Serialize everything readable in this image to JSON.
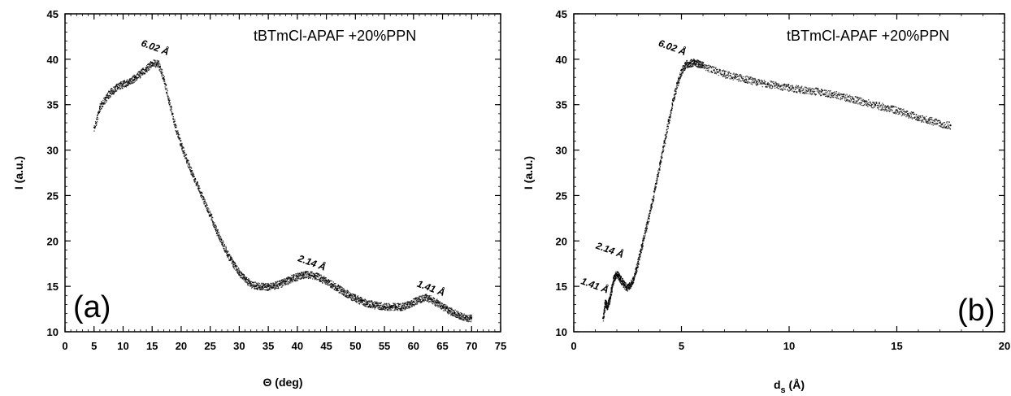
{
  "chart_data": [
    {
      "type": "scatter",
      "title": "",
      "legend_text": "tBTmCl-APAF +20%PPN",
      "panel_tag": "(a)",
      "xlabel": "Θ (deg)",
      "ylabel": "I (a.u.)",
      "xlim": [
        0,
        75
      ],
      "ylim": [
        10,
        45
      ],
      "xticks": [
        0,
        5,
        10,
        15,
        20,
        25,
        30,
        35,
        40,
        45,
        50,
        55,
        60,
        65,
        70,
        75
      ],
      "yticks": [
        10,
        15,
        20,
        25,
        30,
        35,
        40,
        45
      ],
      "marker_color": "#000000",
      "series": [
        {
          "x": [
            5,
            6,
            7,
            8,
            9,
            10,
            11,
            12,
            13,
            14,
            15,
            16,
            17,
            18,
            19,
            20,
            21,
            22,
            23,
            24,
            25,
            26,
            27,
            28,
            29,
            30,
            31,
            32,
            33,
            34,
            35,
            36,
            37,
            38,
            39,
            40,
            41,
            42,
            43,
            44,
            45,
            46,
            47,
            48,
            49,
            50,
            51,
            52,
            53,
            54,
            55,
            56,
            57,
            58,
            59,
            60,
            61,
            62,
            63,
            64,
            65,
            66,
            67,
            68,
            69,
            70
          ],
          "y": [
            32.5,
            34.8,
            35.8,
            36.5,
            37.0,
            37.3,
            37.5,
            38.0,
            38.5,
            39.0,
            39.6,
            39.5,
            37.8,
            35.0,
            32.5,
            30.5,
            28.8,
            27.2,
            25.8,
            24.3,
            22.8,
            21.2,
            19.8,
            18.5,
            17.4,
            16.5,
            15.8,
            15.3,
            15.1,
            15.0,
            15.0,
            15.1,
            15.3,
            15.6,
            15.9,
            16.1,
            16.3,
            16.3,
            16.2,
            15.9,
            15.6,
            15.2,
            14.8,
            14.4,
            14.0,
            13.7,
            13.4,
            13.2,
            13.0,
            12.9,
            12.8,
            12.8,
            12.8,
            12.8,
            13.0,
            13.3,
            13.6,
            13.8,
            13.6,
            13.2,
            12.8,
            12.4,
            12.1,
            11.8,
            11.6,
            11.5
          ]
        }
      ],
      "annotations": [
        {
          "text": "6.02 Å",
          "x": 13.0,
          "y": 41.5
        },
        {
          "text": "2.14 Å",
          "x": 40.0,
          "y": 17.8
        },
        {
          "text": "1.41 Å",
          "x": 60.5,
          "y": 15.0
        }
      ]
    },
    {
      "type": "scatter",
      "title": "",
      "legend_text": "tBTmCl-APAF +20%PPN",
      "panel_tag": "(b)",
      "xlabel": "d",
      "xlabel_sub": "s",
      "xlabel_unit": " (Å)",
      "ylabel": "I (a.u.)",
      "xlim": [
        0,
        20
      ],
      "ylim": [
        10,
        45
      ],
      "xticks": [
        0,
        5,
        10,
        15,
        20
      ],
      "yticks": [
        10,
        15,
        20,
        25,
        30,
        35,
        40,
        45
      ],
      "marker_color": "#000000",
      "series": [
        {
          "x": [
            1.35,
            1.45,
            1.55,
            1.65,
            1.75,
            1.85,
            1.95,
            2.05,
            2.15,
            2.3,
            2.45,
            2.6,
            2.75,
            2.9,
            3.05,
            3.2,
            3.4,
            3.6,
            3.8,
            4.0,
            4.2,
            4.4,
            4.6,
            4.8,
            5.0,
            5.2,
            5.4,
            5.6,
            5.8,
            6.0,
            6.5,
            7.0,
            7.5,
            8.0,
            8.5,
            9.0,
            9.5,
            10.0,
            10.5,
            11.0,
            11.5,
            12.0,
            12.5,
            13.0,
            13.5,
            14.0,
            14.5,
            15.0,
            15.5,
            16.0,
            16.5,
            17.0,
            17.5
          ],
          "y": [
            11.5,
            13.2,
            12.8,
            13.6,
            14.8,
            15.9,
            16.4,
            16.2,
            15.8,
            15.3,
            14.9,
            15.1,
            15.8,
            17.0,
            18.5,
            20.0,
            22.0,
            24.0,
            26.3,
            28.6,
            31.0,
            33.3,
            35.5,
            37.4,
            38.8,
            39.5,
            39.6,
            39.7,
            39.5,
            39.3,
            38.8,
            38.4,
            38.1,
            37.8,
            37.5,
            37.3,
            37.1,
            36.9,
            36.7,
            36.6,
            36.4,
            36.2,
            35.9,
            35.6,
            35.3,
            35.0,
            34.7,
            34.4,
            34.0,
            33.6,
            33.3,
            33.0,
            32.7
          ]
        }
      ],
      "annotations": [
        {
          "text": "6.02 Å",
          "x": 3.9,
          "y": 41.5
        },
        {
          "text": "2.14 Å",
          "x": 1.0,
          "y": 19.2
        },
        {
          "text": "1.41 Å",
          "x": 0.3,
          "y": 15.3
        }
      ]
    }
  ]
}
